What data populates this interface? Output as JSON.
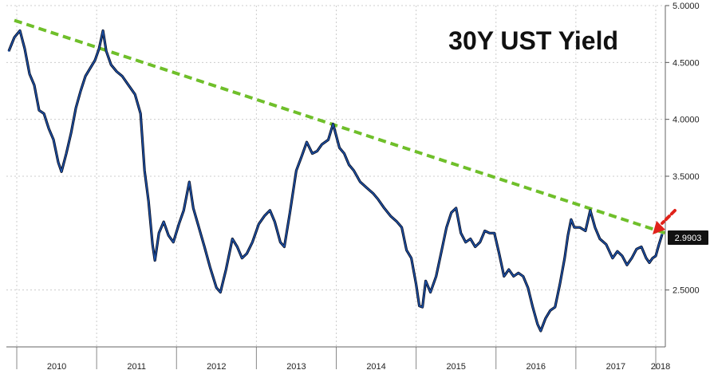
{
  "chart_data": {
    "type": "line",
    "title": "30Y UST Yield",
    "xlabel": "",
    "ylabel": "",
    "ylim": [
      2.0,
      5.0
    ],
    "xlim": [
      2009.87,
      2018.12
    ],
    "yticks": [
      "5.0000",
      "4.5000",
      "4.0000",
      "3.5000",
      "2.5000"
    ],
    "xticks": [
      "2010",
      "2011",
      "2012",
      "2013",
      "2014",
      "2015",
      "2016",
      "2017",
      "2018"
    ],
    "grid": true,
    "last_value_label": "2.9903",
    "series": [
      {
        "values": [
          [
            2009.9,
            4.6
          ],
          [
            2009.97,
            4.72
          ],
          [
            2010.04,
            4.78
          ],
          [
            2010.1,
            4.62
          ],
          [
            2010.16,
            4.4
          ],
          [
            2010.22,
            4.3
          ],
          [
            2010.28,
            4.08
          ],
          [
            2010.34,
            4.05
          ],
          [
            2010.4,
            3.92
          ],
          [
            2010.46,
            3.82
          ],
          [
            2010.52,
            3.62
          ],
          [
            2010.56,
            3.54
          ],
          [
            2010.62,
            3.7
          ],
          [
            2010.68,
            3.88
          ],
          [
            2010.74,
            4.1
          ],
          [
            2010.8,
            4.25
          ],
          [
            2010.86,
            4.38
          ],
          [
            2010.92,
            4.45
          ],
          [
            2010.98,
            4.52
          ],
          [
            2011.03,
            4.62
          ],
          [
            2011.08,
            4.78
          ],
          [
            2011.12,
            4.6
          ],
          [
            2011.18,
            4.48
          ],
          [
            2011.25,
            4.42
          ],
          [
            2011.32,
            4.38
          ],
          [
            2011.4,
            4.3
          ],
          [
            2011.48,
            4.22
          ],
          [
            2011.55,
            4.05
          ],
          [
            2011.6,
            3.55
          ],
          [
            2011.65,
            3.28
          ],
          [
            2011.7,
            2.9
          ],
          [
            2011.73,
            2.76
          ],
          [
            2011.78,
            3.0
          ],
          [
            2011.84,
            3.1
          ],
          [
            2011.9,
            2.98
          ],
          [
            2011.96,
            2.92
          ],
          [
            2012.03,
            3.08
          ],
          [
            2012.09,
            3.2
          ],
          [
            2012.16,
            3.45
          ],
          [
            2012.21,
            3.22
          ],
          [
            2012.28,
            3.05
          ],
          [
            2012.35,
            2.88
          ],
          [
            2012.42,
            2.7
          ],
          [
            2012.5,
            2.52
          ],
          [
            2012.55,
            2.48
          ],
          [
            2012.62,
            2.68
          ],
          [
            2012.7,
            2.95
          ],
          [
            2012.76,
            2.88
          ],
          [
            2012.82,
            2.78
          ],
          [
            2012.88,
            2.82
          ],
          [
            2012.95,
            2.92
          ],
          [
            2013.03,
            3.08
          ],
          [
            2013.1,
            3.15
          ],
          [
            2013.17,
            3.2
          ],
          [
            2013.23,
            3.1
          ],
          [
            2013.3,
            2.92
          ],
          [
            2013.35,
            2.88
          ],
          [
            2013.42,
            3.18
          ],
          [
            2013.5,
            3.55
          ],
          [
            2013.57,
            3.68
          ],
          [
            2013.63,
            3.8
          ],
          [
            2013.7,
            3.7
          ],
          [
            2013.76,
            3.72
          ],
          [
            2013.82,
            3.78
          ],
          [
            2013.9,
            3.82
          ],
          [
            2013.96,
            3.96
          ],
          [
            2014.04,
            3.75
          ],
          [
            2014.1,
            3.7
          ],
          [
            2014.16,
            3.6
          ],
          [
            2014.22,
            3.55
          ],
          [
            2014.3,
            3.45
          ],
          [
            2014.38,
            3.4
          ],
          [
            2014.46,
            3.35
          ],
          [
            2014.52,
            3.3
          ],
          [
            2014.6,
            3.22
          ],
          [
            2014.68,
            3.15
          ],
          [
            2014.76,
            3.1
          ],
          [
            2014.82,
            3.05
          ],
          [
            2014.88,
            2.85
          ],
          [
            2014.94,
            2.78
          ],
          [
            2015.0,
            2.55
          ],
          [
            2015.04,
            2.36
          ],
          [
            2015.08,
            2.35
          ],
          [
            2015.12,
            2.58
          ],
          [
            2015.18,
            2.48
          ],
          [
            2015.25,
            2.62
          ],
          [
            2015.32,
            2.85
          ],
          [
            2015.38,
            3.05
          ],
          [
            2015.44,
            3.18
          ],
          [
            2015.5,
            3.22
          ],
          [
            2015.56,
            3.0
          ],
          [
            2015.62,
            2.92
          ],
          [
            2015.68,
            2.95
          ],
          [
            2015.74,
            2.88
          ],
          [
            2015.8,
            2.92
          ],
          [
            2015.86,
            3.02
          ],
          [
            2015.92,
            3.0
          ],
          [
            2015.98,
            3.0
          ],
          [
            2016.04,
            2.82
          ],
          [
            2016.1,
            2.62
          ],
          [
            2016.16,
            2.68
          ],
          [
            2016.22,
            2.62
          ],
          [
            2016.28,
            2.65
          ],
          [
            2016.34,
            2.62
          ],
          [
            2016.4,
            2.52
          ],
          [
            2016.46,
            2.35
          ],
          [
            2016.52,
            2.2
          ],
          [
            2016.56,
            2.14
          ],
          [
            2016.62,
            2.25
          ],
          [
            2016.68,
            2.32
          ],
          [
            2016.74,
            2.35
          ],
          [
            2016.8,
            2.55
          ],
          [
            2016.86,
            2.78
          ],
          [
            2016.9,
            2.98
          ],
          [
            2016.94,
            3.12
          ],
          [
            2016.98,
            3.05
          ],
          [
            2017.05,
            3.05
          ],
          [
            2017.12,
            3.02
          ],
          [
            2017.18,
            3.2
          ],
          [
            2017.24,
            3.05
          ],
          [
            2017.3,
            2.95
          ],
          [
            2017.38,
            2.9
          ],
          [
            2017.46,
            2.78
          ],
          [
            2017.52,
            2.84
          ],
          [
            2017.58,
            2.8
          ],
          [
            2017.64,
            2.72
          ],
          [
            2017.7,
            2.78
          ],
          [
            2017.76,
            2.86
          ],
          [
            2017.82,
            2.88
          ],
          [
            2017.88,
            2.78
          ],
          [
            2017.92,
            2.74
          ],
          [
            2017.96,
            2.78
          ],
          [
            2018.0,
            2.8
          ],
          [
            2018.04,
            2.9
          ],
          [
            2018.08,
            2.99
          ]
        ]
      },
      {
        "style": "trendline",
        "values": [
          [
            2009.97,
            4.87
          ],
          [
            2018.12,
            3.0
          ]
        ]
      }
    ],
    "colors": {
      "line": "#1e56b0",
      "line_shadow": "#0a0f24",
      "trend": "#6fbf2a",
      "arrow": "#e0221a",
      "grid": "#cccccc",
      "label_bg": "#111111"
    }
  }
}
